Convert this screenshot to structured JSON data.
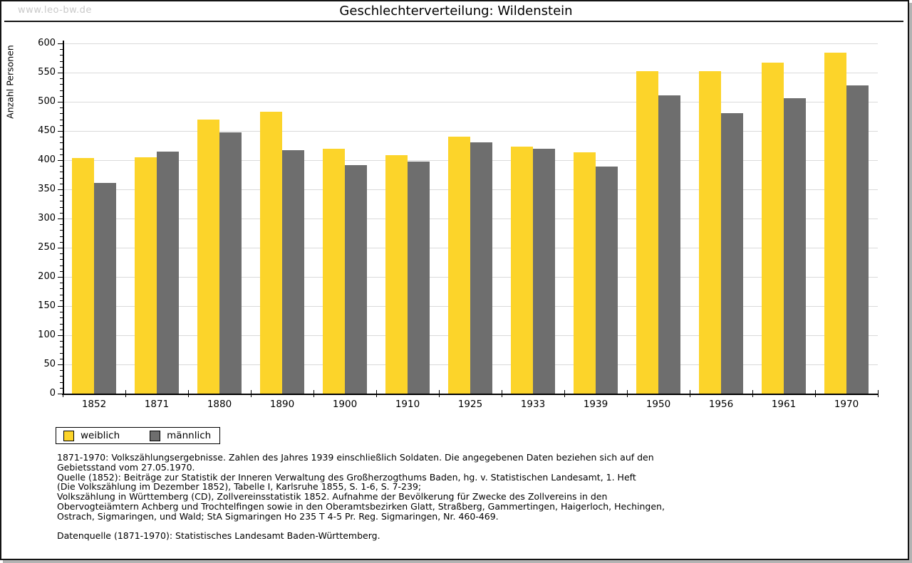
{
  "header": {
    "watermark": "www.leo-bw.de",
    "title": "Geschlechterverteilung: Wildenstein"
  },
  "chart_data": {
    "type": "bar",
    "title": "Geschlechterverteilung: Wildenstein",
    "xlabel": "",
    "ylabel": "Anzahl Personen",
    "ylim": [
      0,
      600
    ],
    "ytick_step": 50,
    "grid": true,
    "legend_position": "bottom-left",
    "categories": [
      "1852",
      "1871",
      "1880",
      "1890",
      "1900",
      "1910",
      "1925",
      "1933",
      "1939",
      "1950",
      "1956",
      "1961",
      "1970"
    ],
    "series": [
      {
        "name": "weiblich",
        "color": "#fcd42a",
        "values": [
          404,
          405,
          470,
          483,
          420,
          409,
          440,
          423,
          413,
          552,
          552,
          567,
          584
        ]
      },
      {
        "name": "männlich",
        "color": "#6e6e6e",
        "values": [
          361,
          415,
          447,
          417,
          391,
          397,
          430,
          420,
          389,
          511,
          481,
          506,
          528
        ]
      }
    ]
  },
  "footnotes": {
    "lines": [
      "1871-1970: Volkszählungsergebnisse. Zahlen des Jahres 1939 einschließlich Soldaten. Die angegebenen Daten beziehen sich auf den",
      "Gebietsstand vom 27.05.1970.",
      "Quelle (1852): Beiträge zur Statistik der Inneren Verwaltung des Großherzogthums Baden, hg. v. Statistischen Landesamt, 1. Heft",
      "(Die Volkszählung im Dezember 1852), Tabelle I, Karlsruhe 1855, S. 1-6, S. 7-239;",
      "Volkszählung in Württemberg (CD), Zollvereinsstatistik 1852. Aufnahme der Bevölkerung für Zwecke des Zollvereins in den",
      "Obervogteiämtern Achberg und Trochtelfingen sowie in den Oberamtsbezirken Glatt, Straßberg, Gammertingen, Haigerloch, Hechingen,",
      "Ostrach, Sigmaringen, und Wald; StA Sigmaringen Ho 235 T 4-5 Pr. Reg. Sigmaringen, Nr. 460-469."
    ],
    "datasource": "Datenquelle (1871-1970): Statistisches Landesamt Baden-Württemberg."
  }
}
